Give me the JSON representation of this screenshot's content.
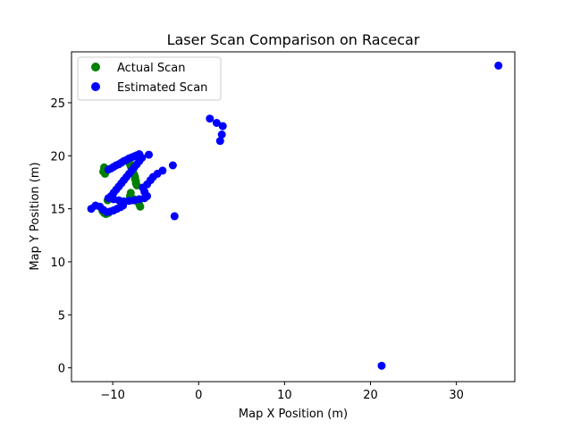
{
  "chart_data": {
    "type": "scatter",
    "title": "Laser Scan Comparison on Racecar",
    "xlabel": "Map X Position (m)",
    "ylabel": "Map Y Position (m)",
    "xlim": [
      -14.8,
      36.8
    ],
    "ylim": [
      -1.3,
      29.8
    ],
    "xticks": [
      -10,
      0,
      10,
      20,
      30
    ],
    "yticks": [
      0,
      5,
      10,
      15,
      20,
      25
    ],
    "grid": false,
    "legend": "top-left",
    "series": [
      {
        "name": "Actual Scan",
        "color": "#008000",
        "points": [
          [
            -11.0,
            18.7
          ],
          [
            -11.1,
            18.5
          ],
          [
            -10.9,
            18.3
          ],
          [
            -11.0,
            18.9
          ],
          [
            -8.0,
            19.2
          ],
          [
            -7.9,
            19.0
          ],
          [
            -7.8,
            18.8
          ],
          [
            -7.7,
            18.6
          ],
          [
            -7.6,
            18.4
          ],
          [
            -7.5,
            18.2
          ],
          [
            -7.4,
            18.0
          ],
          [
            -7.4,
            17.8
          ],
          [
            -7.3,
            17.6
          ],
          [
            -7.3,
            17.4
          ],
          [
            -7.2,
            17.2
          ],
          [
            -7.9,
            16.5
          ],
          [
            -8.0,
            16.2
          ],
          [
            -7.8,
            15.8
          ],
          [
            -7.5,
            15.9
          ],
          [
            -7.0,
            15.6
          ],
          [
            -6.9,
            15.4
          ],
          [
            -6.8,
            15.2
          ],
          [
            -10.6,
            15.8
          ],
          [
            -10.4,
            16.0
          ],
          [
            -11.0,
            14.6
          ],
          [
            -11.2,
            14.8
          ],
          [
            -10.8,
            14.5
          ],
          [
            -10.5,
            14.6
          ]
        ]
      },
      {
        "name": "Estimated Scan",
        "color": "#0000ff",
        "points": [
          [
            34.9,
            28.5
          ],
          [
            21.3,
            0.2
          ],
          [
            1.3,
            23.5
          ],
          [
            2.1,
            23.1
          ],
          [
            2.8,
            22.8
          ],
          [
            2.7,
            22.0
          ],
          [
            2.5,
            21.4
          ],
          [
            -3.0,
            19.1
          ],
          [
            -2.8,
            14.3
          ],
          [
            -10.5,
            18.7
          ],
          [
            -10.2,
            18.8
          ],
          [
            -9.9,
            18.95
          ],
          [
            -9.6,
            19.1
          ],
          [
            -9.3,
            19.2
          ],
          [
            -9.0,
            19.35
          ],
          [
            -8.7,
            19.5
          ],
          [
            -8.4,
            19.6
          ],
          [
            -8.1,
            19.75
          ],
          [
            -7.8,
            19.85
          ],
          [
            -7.5,
            19.95
          ],
          [
            -7.2,
            20.05
          ],
          [
            -6.9,
            20.15
          ],
          [
            -5.8,
            20.1
          ],
          [
            -6.6,
            19.8
          ],
          [
            -6.9,
            19.5
          ],
          [
            -7.2,
            19.2
          ],
          [
            -7.5,
            18.9
          ],
          [
            -7.8,
            18.6
          ],
          [
            -8.1,
            18.3
          ],
          [
            -8.4,
            18.0
          ],
          [
            -8.7,
            17.7
          ],
          [
            -9.0,
            17.4
          ],
          [
            -9.3,
            17.1
          ],
          [
            -9.6,
            16.8
          ],
          [
            -9.9,
            16.5
          ],
          [
            -10.2,
            16.2
          ],
          [
            -10.5,
            16.0
          ],
          [
            -9.9,
            15.9
          ],
          [
            -9.3,
            15.8
          ],
          [
            -8.7,
            15.7
          ],
          [
            -8.1,
            15.75
          ],
          [
            -7.5,
            15.8
          ],
          [
            -6.9,
            15.9
          ],
          [
            -6.3,
            16.0
          ],
          [
            -6.0,
            16.2
          ],
          [
            -6.3,
            16.6
          ],
          [
            -6.5,
            17.0
          ],
          [
            -6.0,
            17.3
          ],
          [
            -5.6,
            17.7
          ],
          [
            -5.3,
            18.0
          ],
          [
            -4.8,
            18.3
          ],
          [
            -4.2,
            18.6
          ],
          [
            -12.5,
            15.0
          ],
          [
            -12.0,
            15.3
          ],
          [
            -11.5,
            15.2
          ],
          [
            -11.1,
            14.9
          ],
          [
            -10.7,
            14.7
          ],
          [
            -10.3,
            14.75
          ],
          [
            -9.9,
            14.85
          ],
          [
            -9.5,
            15.0
          ],
          [
            -9.1,
            15.15
          ],
          [
            -8.8,
            15.3
          ]
        ]
      }
    ]
  }
}
